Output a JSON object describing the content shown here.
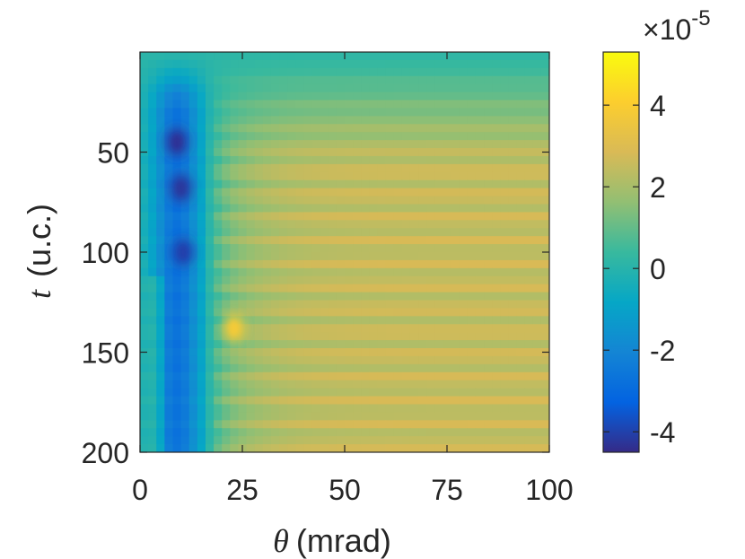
{
  "chart_data": {
    "type": "heatmap",
    "title": "",
    "xlabel": {
      "symbol": "θ",
      "unit": "(mrad)"
    },
    "ylabel": {
      "symbol": "t",
      "unit": "(u.c.)"
    },
    "xlim": [
      0,
      100
    ],
    "ylim": [
      200,
      0
    ],
    "y_reversed": true,
    "xticks": [
      0,
      25,
      50,
      75,
      100
    ],
    "yticks": [
      50,
      100,
      150,
      200
    ],
    "colormap": "parula",
    "colorbar": {
      "range": [
        -4.5,
        5.3
      ],
      "ticks": [
        -4,
        -2,
        0,
        2,
        4
      ],
      "multiplier": "×10",
      "exponent": "-5"
    },
    "features": [
      {
        "theta": 9,
        "t": 45,
        "value": -4.3
      },
      {
        "theta": 10,
        "t": 68,
        "value": -4.2
      },
      {
        "theta": 10.5,
        "t": 100,
        "value": -4.0
      },
      {
        "theta": 23,
        "t": 138,
        "value": 3.8
      }
    ]
  }
}
